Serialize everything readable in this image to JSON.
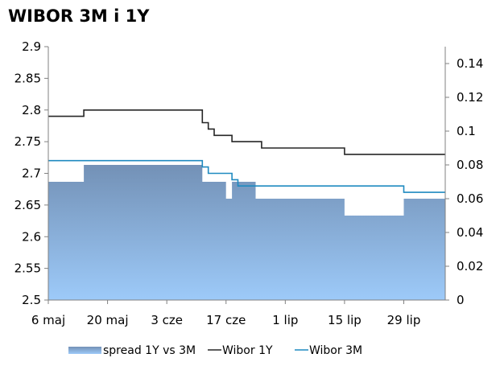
{
  "chart_data": {
    "type": "line",
    "title": "WIBOR 3M i 1Y",
    "x": [
      "2013-05-06",
      "2013-05-07",
      "2013-05-08",
      "2013-05-09",
      "2013-05-10",
      "2013-05-13",
      "2013-05-14",
      "2013-05-15",
      "2013-05-16",
      "2013-05-17",
      "2013-05-20",
      "2013-05-21",
      "2013-05-22",
      "2013-05-23",
      "2013-05-24",
      "2013-05-27",
      "2013-05-28",
      "2013-05-29",
      "2013-05-31",
      "2013-06-03",
      "2013-06-04",
      "2013-06-05",
      "2013-06-06",
      "2013-06-07",
      "2013-06-10",
      "2013-06-11",
      "2013-06-12",
      "2013-06-13",
      "2013-06-14",
      "2013-06-17",
      "2013-06-18",
      "2013-06-19",
      "2013-06-20",
      "2013-06-21",
      "2013-06-24",
      "2013-06-25",
      "2013-06-26",
      "2013-06-27",
      "2013-06-28",
      "2013-07-01",
      "2013-07-02",
      "2013-07-03",
      "2013-07-04",
      "2013-07-05",
      "2013-07-08",
      "2013-07-09",
      "2013-07-10",
      "2013-07-11",
      "2013-07-12",
      "2013-07-15",
      "2013-07-16",
      "2013-07-17",
      "2013-07-18",
      "2013-07-19",
      "2013-07-22",
      "2013-07-23",
      "2013-07-24",
      "2013-07-25",
      "2013-07-26",
      "2013-07-29",
      "2013-07-30",
      "2013-07-31",
      "2013-08-01",
      "2013-08-02",
      "2013-08-05",
      "2013-08-06",
      "2013-08-07"
    ],
    "series": [
      {
        "name": "spread 1Y vs 3M",
        "type": "area",
        "axis": "right",
        "color": "#7a9dc8",
        "values": [
          0.07,
          0.07,
          0.07,
          0.07,
          0.07,
          0.07,
          0.08,
          0.08,
          0.08,
          0.08,
          0.08,
          0.08,
          0.08,
          0.08,
          0.08,
          0.08,
          0.08,
          0.08,
          0.08,
          0.08,
          0.08,
          0.08,
          0.08,
          0.08,
          0.08,
          0.08,
          0.07,
          0.07,
          0.07,
          0.07,
          0.06,
          0.07,
          0.07,
          0.07,
          0.07,
          0.06,
          0.06,
          0.06,
          0.06,
          0.06,
          0.06,
          0.06,
          0.06,
          0.06,
          0.06,
          0.06,
          0.06,
          0.06,
          0.06,
          0.06,
          0.05,
          0.05,
          0.05,
          0.05,
          0.05,
          0.05,
          0.05,
          0.05,
          0.05,
          0.05,
          0.06,
          0.06,
          0.06,
          0.06,
          0.06,
          0.06,
          0.06
        ]
      },
      {
        "name": "Wibor 1Y",
        "type": "line",
        "axis": "left",
        "color": "#262626",
        "values": [
          2.79,
          2.79,
          2.79,
          2.79,
          2.79,
          2.79,
          2.8,
          2.8,
          2.8,
          2.8,
          2.8,
          2.8,
          2.8,
          2.8,
          2.8,
          2.8,
          2.8,
          2.8,
          2.8,
          2.8,
          2.8,
          2.8,
          2.8,
          2.8,
          2.8,
          2.8,
          2.78,
          2.77,
          2.76,
          2.76,
          2.76,
          2.75,
          2.75,
          2.75,
          2.75,
          2.75,
          2.74,
          2.74,
          2.74,
          2.74,
          2.74,
          2.74,
          2.74,
          2.74,
          2.74,
          2.74,
          2.74,
          2.74,
          2.74,
          2.74,
          2.73,
          2.73,
          2.73,
          2.73,
          2.73,
          2.73,
          2.73,
          2.73,
          2.73,
          2.73,
          2.73,
          2.73,
          2.73,
          2.73,
          2.73,
          2.73,
          2.73
        ]
      },
      {
        "name": "Wibor 3M",
        "type": "line",
        "axis": "left",
        "color": "#1f8ac0",
        "values": [
          2.72,
          2.72,
          2.72,
          2.72,
          2.72,
          2.72,
          2.72,
          2.72,
          2.72,
          2.72,
          2.72,
          2.72,
          2.72,
          2.72,
          2.72,
          2.72,
          2.72,
          2.72,
          2.72,
          2.72,
          2.72,
          2.72,
          2.72,
          2.72,
          2.72,
          2.72,
          2.71,
          2.7,
          2.7,
          2.7,
          2.7,
          2.69,
          2.68,
          2.68,
          2.68,
          2.68,
          2.68,
          2.68,
          2.68,
          2.68,
          2.68,
          2.68,
          2.68,
          2.68,
          2.68,
          2.68,
          2.68,
          2.68,
          2.68,
          2.68,
          2.68,
          2.68,
          2.68,
          2.68,
          2.68,
          2.68,
          2.68,
          2.68,
          2.68,
          2.68,
          2.67,
          2.67,
          2.67,
          2.67,
          2.67,
          2.67,
          2.67
        ]
      }
    ],
    "x_tick_labels": [
      "6 maj",
      "20 maj",
      "3 cze",
      "17 cze",
      "1 lip",
      "15 lip",
      "29 lip"
    ],
    "y_left": {
      "ticks": [
        "2.5",
        "2.55",
        "2.6",
        "2.65",
        "2.7",
        "2.75",
        "2.8",
        "2.85",
        "2.9"
      ],
      "ylim": [
        2.5,
        2.9
      ]
    },
    "y_right": {
      "ticks": [
        "0",
        "0.02",
        "0.04",
        "0.06",
        "0.08",
        "0.1",
        "0.12",
        "0.14"
      ],
      "ylim": [
        0,
        0.15
      ]
    },
    "legend_position": "bottom",
    "grid": false
  }
}
